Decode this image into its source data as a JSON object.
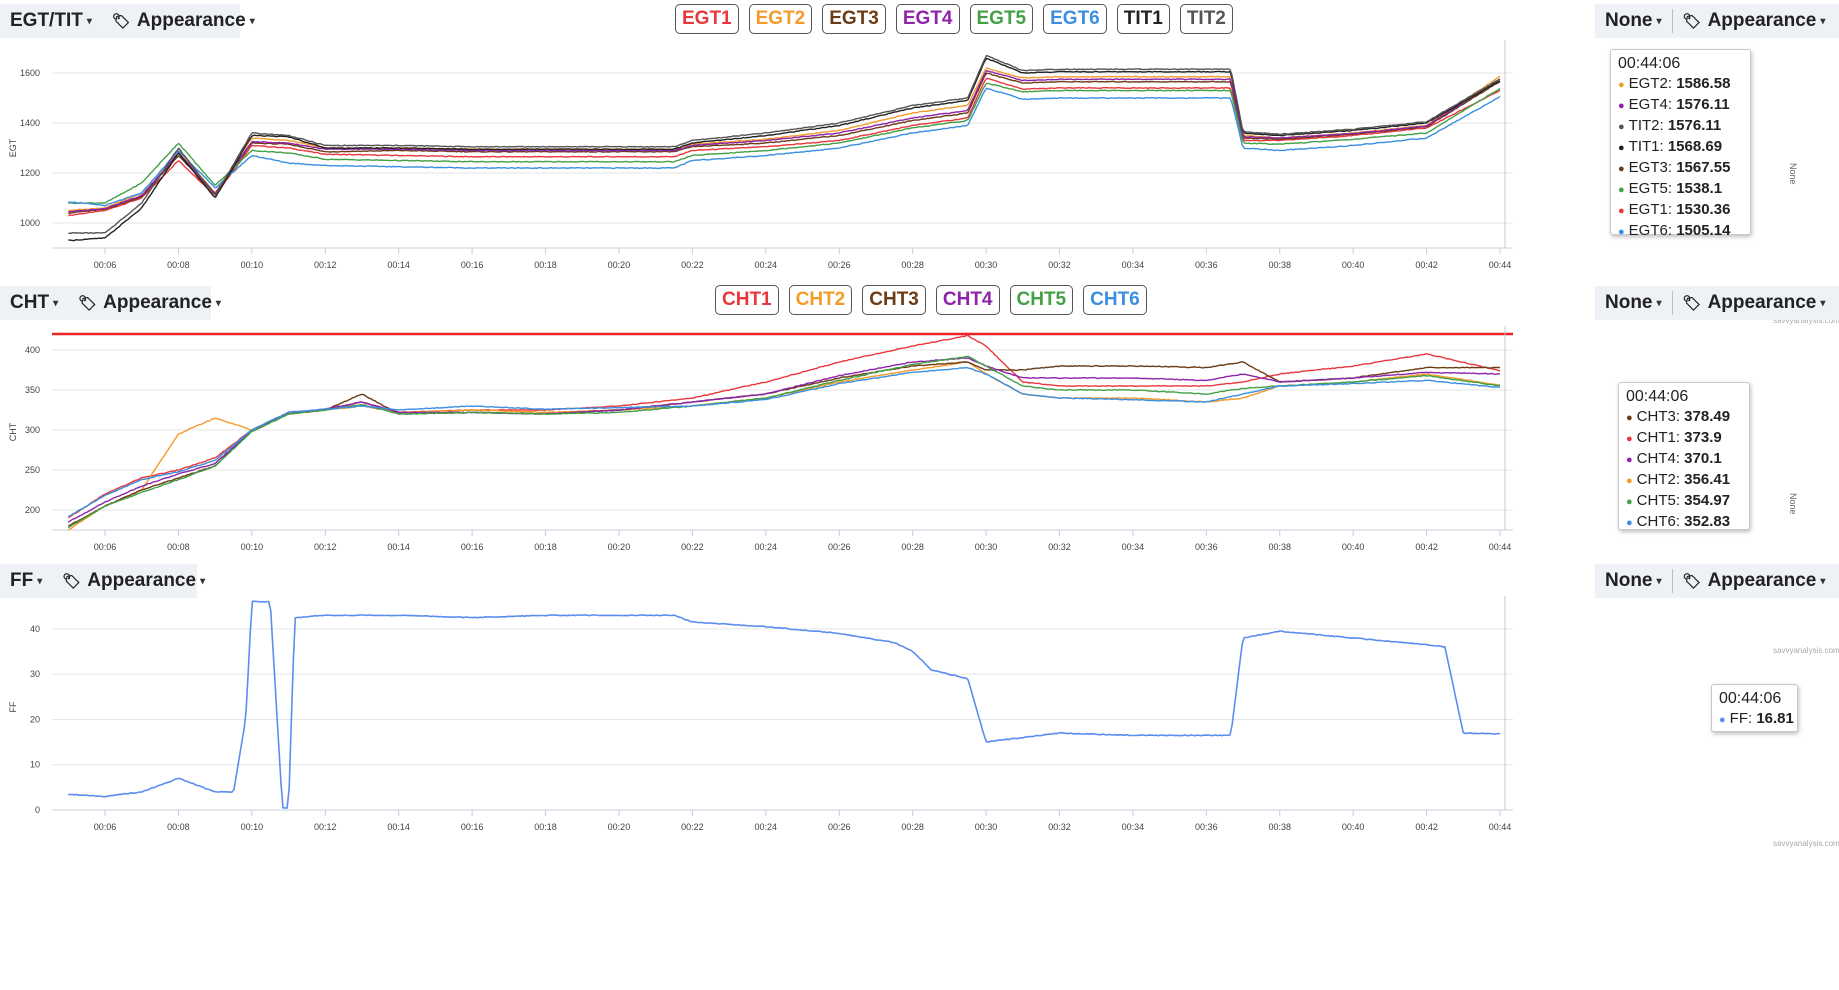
{
  "panels": [
    {
      "id": "egt",
      "selector_label": "EGT/TIT",
      "appearance_label": "Appearance",
      "right_selector_label": "None",
      "right_appearance_label": "Appearance",
      "ylabel": "EGT",
      "right_axis_label": "None",
      "yticks": [
        "1000",
        "1200",
        "1400",
        "1600"
      ],
      "xticks": [
        "00:06",
        "00:08",
        "00:10",
        "00:12",
        "00:14",
        "00:16",
        "00:18",
        "00:20",
        "00:22",
        "00:24",
        "00:26",
        "00:28",
        "00:30",
        "00:32",
        "00:34",
        "00:36",
        "00:38",
        "00:40",
        "00:42",
        "00:44"
      ],
      "watermark": "savvyanalysis.com",
      "chips": [
        {
          "label": "EGT1",
          "color": "#e8383d"
        },
        {
          "label": "EGT2",
          "color": "#f39c2c"
        },
        {
          "label": "EGT3",
          "color": "#6b3c16"
        },
        {
          "label": "EGT4",
          "color": "#8e24aa"
        },
        {
          "label": "EGT5",
          "color": "#43a047"
        },
        {
          "label": "EGT6",
          "color": "#3b8fe0"
        },
        {
          "label": "TIT1",
          "color": "#222222"
        },
        {
          "label": "TIT2",
          "color": "#555555"
        }
      ],
      "tooltip": {
        "time": "00:44:06",
        "rows": [
          {
            "name": "EGT2",
            "value": "1586.58",
            "color": "#f39c2c"
          },
          {
            "name": "EGT4",
            "value": "1576.11",
            "color": "#8e24aa"
          },
          {
            "name": "TIT2",
            "value": "1576.11",
            "color": "#555555"
          },
          {
            "name": "TIT1",
            "value": "1568.69",
            "color": "#222222"
          },
          {
            "name": "EGT3",
            "value": "1567.55",
            "color": "#6b3c16"
          },
          {
            "name": "EGT5",
            "value": "1538.1",
            "color": "#43a047"
          },
          {
            "name": "EGT1",
            "value": "1530.36",
            "color": "#e8383d"
          },
          {
            "name": "EGT6",
            "value": "1505.14",
            "color": "#3b8fe0"
          }
        ]
      }
    },
    {
      "id": "cht",
      "selector_label": "CHT",
      "appearance_label": "Appearance",
      "right_selector_label": "None",
      "right_appearance_label": "Appearance",
      "ylabel": "CHT",
      "right_axis_label": "None",
      "yticks": [
        "200",
        "250",
        "300",
        "350",
        "400"
      ],
      "xticks": [
        "00:06",
        "00:08",
        "00:10",
        "00:12",
        "00:14",
        "00:16",
        "00:18",
        "00:20",
        "00:22",
        "00:24",
        "00:26",
        "00:28",
        "00:30",
        "00:32",
        "00:34",
        "00:36",
        "00:38",
        "00:40",
        "00:42",
        "00:44"
      ],
      "watermark": "savvyanalysis.com",
      "chips": [
        {
          "label": "CHT1",
          "color": "#e8383d"
        },
        {
          "label": "CHT2",
          "color": "#f39c2c"
        },
        {
          "label": "CHT3",
          "color": "#6b3c16"
        },
        {
          "label": "CHT4",
          "color": "#8e24aa"
        },
        {
          "label": "CHT5",
          "color": "#43a047"
        },
        {
          "label": "CHT6",
          "color": "#3b8fe0"
        }
      ],
      "tooltip": {
        "time": "00:44:06",
        "rows": [
          {
            "name": "CHT3",
            "value": "378.49",
            "color": "#6b3c16"
          },
          {
            "name": "CHT1",
            "value": "373.9",
            "color": "#e8383d"
          },
          {
            "name": "CHT4",
            "value": "370.1",
            "color": "#8e24aa"
          },
          {
            "name": "CHT2",
            "value": "356.41",
            "color": "#f39c2c"
          },
          {
            "name": "CHT5",
            "value": "354.97",
            "color": "#43a047"
          },
          {
            "name": "CHT6",
            "value": "352.83",
            "color": "#3b8fe0"
          }
        ]
      }
    },
    {
      "id": "ff",
      "selector_label": "FF",
      "appearance_label": "Appearance",
      "right_selector_label": "None",
      "right_appearance_label": "Appearance",
      "ylabel": "FF",
      "yticks": [
        "0",
        "10",
        "20",
        "30",
        "40"
      ],
      "xticks": [
        "00:06",
        "00:08",
        "00:10",
        "00:12",
        "00:14",
        "00:16",
        "00:18",
        "00:20",
        "00:22",
        "00:24",
        "00:26",
        "00:28",
        "00:30",
        "00:32",
        "00:34",
        "00:36",
        "00:38",
        "00:40",
        "00:42",
        "00:44"
      ],
      "watermark": "savvyanalysis.com",
      "tooltip": {
        "time": "00:44:06",
        "rows": [
          {
            "name": "FF",
            "value": "16.81",
            "color": "#5b8def"
          }
        ]
      }
    }
  ],
  "chart_data": [
    {
      "type": "line",
      "title": "",
      "ylabel": "EGT",
      "xlabel": "",
      "x": [
        "00:05",
        "00:06",
        "00:07",
        "00:08",
        "00:09",
        "00:10",
        "00:11",
        "00:12",
        "00:14",
        "00:16",
        "00:18",
        "00:20",
        "00:21:30",
        "00:22",
        "00:24",
        "00:26",
        "00:28",
        "00:29:30",
        "00:30",
        "00:31",
        "00:32",
        "00:34",
        "00:36",
        "00:36:40",
        "00:37",
        "00:38",
        "00:40",
        "00:42",
        "00:44"
      ],
      "ylim": [
        900,
        1700
      ],
      "series": [
        {
          "name": "EGT1",
          "color": "#e8383d",
          "values": [
            1030,
            1050,
            1100,
            1250,
            1110,
            1310,
            1300,
            1275,
            1270,
            1265,
            1265,
            1265,
            1265,
            1290,
            1305,
            1330,
            1390,
            1420,
            1580,
            1535,
            1540,
            1540,
            1540,
            1540,
            1330,
            1330,
            1350,
            1380,
            1530
          ]
        },
        {
          "name": "EGT2",
          "color": "#f39c2c",
          "values": [
            1050,
            1060,
            1120,
            1290,
            1120,
            1340,
            1330,
            1300,
            1300,
            1295,
            1295,
            1295,
            1295,
            1315,
            1335,
            1370,
            1440,
            1470,
            1620,
            1580,
            1585,
            1585,
            1585,
            1585,
            1350,
            1340,
            1360,
            1390,
            1586
          ]
        },
        {
          "name": "EGT3",
          "color": "#6b3c16",
          "values": [
            1040,
            1055,
            1105,
            1270,
            1115,
            1320,
            1315,
            1285,
            1290,
            1285,
            1285,
            1285,
            1285,
            1305,
            1320,
            1350,
            1410,
            1440,
            1600,
            1560,
            1565,
            1565,
            1565,
            1565,
            1340,
            1335,
            1355,
            1385,
            1567
          ]
        },
        {
          "name": "EGT4",
          "color": "#8e24aa",
          "values": [
            1045,
            1058,
            1110,
            1280,
            1118,
            1325,
            1320,
            1295,
            1295,
            1290,
            1290,
            1290,
            1290,
            1310,
            1330,
            1360,
            1420,
            1450,
            1610,
            1570,
            1575,
            1575,
            1575,
            1575,
            1345,
            1340,
            1358,
            1388,
            1576
          ]
        },
        {
          "name": "EGT5",
          "color": "#43a047",
          "values": [
            1080,
            1080,
            1160,
            1320,
            1150,
            1290,
            1280,
            1255,
            1250,
            1245,
            1245,
            1245,
            1245,
            1270,
            1290,
            1320,
            1380,
            1410,
            1560,
            1525,
            1530,
            1530,
            1530,
            1530,
            1320,
            1315,
            1335,
            1360,
            1538
          ]
        },
        {
          "name": "EGT6",
          "color": "#3b8fe0",
          "values": [
            1085,
            1070,
            1120,
            1290,
            1140,
            1270,
            1240,
            1230,
            1225,
            1220,
            1220,
            1220,
            1220,
            1250,
            1270,
            1300,
            1360,
            1390,
            1540,
            1495,
            1500,
            1500,
            1500,
            1500,
            1300,
            1290,
            1310,
            1340,
            1505
          ]
        },
        {
          "name": "TIT1",
          "color": "#222222",
          "values": [
            930,
            940,
            1060,
            1280,
            1100,
            1350,
            1345,
            1300,
            1300,
            1295,
            1295,
            1295,
            1295,
            1320,
            1350,
            1390,
            1460,
            1490,
            1660,
            1600,
            1605,
            1605,
            1605,
            1605,
            1360,
            1350,
            1370,
            1400,
            1569
          ]
        },
        {
          "name": "TIT2",
          "color": "#555555",
          "values": [
            960,
            960,
            1080,
            1300,
            1110,
            1360,
            1350,
            1310,
            1310,
            1305,
            1305,
            1305,
            1305,
            1330,
            1360,
            1400,
            1470,
            1500,
            1670,
            1610,
            1615,
            1615,
            1615,
            1615,
            1365,
            1355,
            1375,
            1405,
            1576
          ]
        }
      ]
    },
    {
      "type": "line",
      "title": "",
      "ylabel": "CHT",
      "xlabel": "",
      "x": [
        "00:05",
        "00:06",
        "00:07",
        "00:08",
        "00:09",
        "00:10",
        "00:11",
        "00:12",
        "00:13",
        "00:14",
        "00:16",
        "00:18",
        "00:20",
        "00:22",
        "00:24",
        "00:26",
        "00:28",
        "00:29:30",
        "00:30",
        "00:31",
        "00:32",
        "00:34",
        "00:36",
        "00:37",
        "00:38",
        "00:40",
        "00:42",
        "00:44"
      ],
      "ylim": [
        175,
        420
      ],
      "redline": 420,
      "series": [
        {
          "name": "CHT1",
          "color": "#e8383d",
          "values": [
            190,
            220,
            240,
            250,
            265,
            300,
            320,
            325,
            335,
            322,
            325,
            325,
            330,
            340,
            360,
            385,
            405,
            418,
            405,
            360,
            355,
            355,
            355,
            360,
            370,
            380,
            395,
            374
          ]
        },
        {
          "name": "CHT2",
          "color": "#f39c2c",
          "values": [
            175,
            205,
            225,
            295,
            315,
            300,
            320,
            325,
            330,
            322,
            325,
            322,
            325,
            330,
            340,
            360,
            375,
            385,
            370,
            345,
            340,
            340,
            335,
            340,
            355,
            360,
            370,
            356
          ]
        },
        {
          "name": "CHT3",
          "color": "#6b3c16",
          "values": [
            180,
            205,
            225,
            240,
            255,
            300,
            320,
            325,
            345,
            320,
            322,
            320,
            325,
            335,
            345,
            365,
            380,
            385,
            375,
            375,
            380,
            380,
            378,
            385,
            360,
            365,
            378,
            378
          ]
        },
        {
          "name": "CHT4",
          "color": "#8e24aa",
          "values": [
            185,
            210,
            230,
            245,
            258,
            300,
            322,
            326,
            335,
            322,
            322,
            320,
            325,
            335,
            345,
            368,
            385,
            390,
            380,
            365,
            365,
            365,
            362,
            370,
            360,
            365,
            372,
            370
          ]
        },
        {
          "name": "CHT5",
          "color": "#43a047",
          "values": [
            178,
            205,
            222,
            238,
            255,
            298,
            320,
            325,
            332,
            320,
            322,
            320,
            322,
            330,
            340,
            362,
            382,
            392,
            380,
            355,
            350,
            350,
            345,
            352,
            355,
            360,
            368,
            355
          ]
        },
        {
          "name": "CHT6",
          "color": "#3b8fe0",
          "values": [
            192,
            218,
            238,
            248,
            262,
            300,
            322,
            326,
            330,
            325,
            330,
            326,
            328,
            330,
            338,
            358,
            372,
            378,
            370,
            345,
            340,
            338,
            335,
            345,
            355,
            358,
            362,
            353
          ]
        }
      ]
    },
    {
      "type": "line",
      "title": "",
      "ylabel": "FF",
      "xlabel": "",
      "x": [
        "00:05",
        "00:06",
        "00:07",
        "00:08",
        "00:09",
        "00:09:30",
        "00:09:50",
        "00:10",
        "00:10:30",
        "00:10:50",
        "00:11",
        "00:11:10",
        "00:12",
        "00:14",
        "00:16",
        "00:18",
        "00:20",
        "00:21:30",
        "00:22",
        "00:24",
        "00:26",
        "00:27:30",
        "00:28",
        "00:28:30",
        "00:29:30",
        "00:30",
        "00:31",
        "00:32",
        "00:34",
        "00:36",
        "00:36:40",
        "00:37",
        "00:38",
        "00:40",
        "00:42",
        "00:42:30",
        "00:43",
        "00:44"
      ],
      "ylim": [
        0,
        45
      ],
      "series": [
        {
          "name": "FF",
          "color": "#5b8def",
          "values": [
            3.5,
            3,
            4,
            7,
            4,
            4,
            20,
            46,
            46,
            0.5,
            0.5,
            42.5,
            43,
            43,
            42.5,
            43,
            43,
            43,
            41.5,
            40.5,
            39,
            37,
            35,
            31,
            29,
            15,
            16,
            17,
            16.5,
            16.5,
            16.5,
            38,
            39.5,
            38,
            36.5,
            36,
            17,
            16.81
          ]
        }
      ]
    }
  ]
}
